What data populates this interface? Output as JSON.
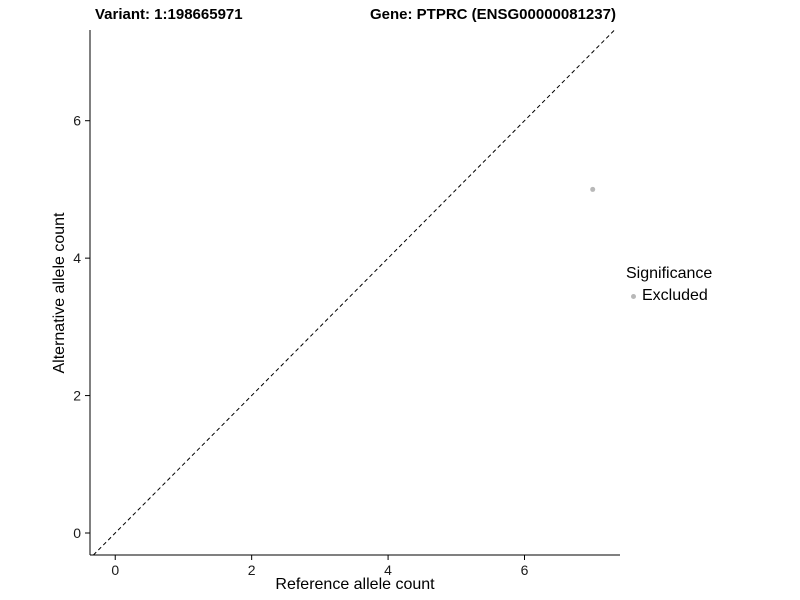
{
  "chart_data": {
    "type": "scatter",
    "title_left": "Variant: 1:198665971",
    "title_right": "Gene: PTPRC (ENSG00000081237)",
    "xlabel": "Reference allele count",
    "ylabel": "Alternative allele count",
    "xlim": [
      -0.37,
      7.4
    ],
    "ylim": [
      -0.32,
      7.32
    ],
    "xticks": [
      0,
      2,
      4,
      6
    ],
    "yticks": [
      0,
      2,
      4,
      6
    ],
    "grid": "off",
    "identity_line": {
      "style": "dashed",
      "slope": 1,
      "intercept": 0,
      "color": "#000000"
    },
    "series": [
      {
        "name": "Excluded",
        "color": "#b8b8b8",
        "points": [
          [
            7,
            5
          ]
        ]
      }
    ],
    "legend": {
      "title": "Significance",
      "position": "right",
      "items": [
        {
          "label": "Excluded",
          "color": "#b8b8b8"
        }
      ]
    }
  }
}
